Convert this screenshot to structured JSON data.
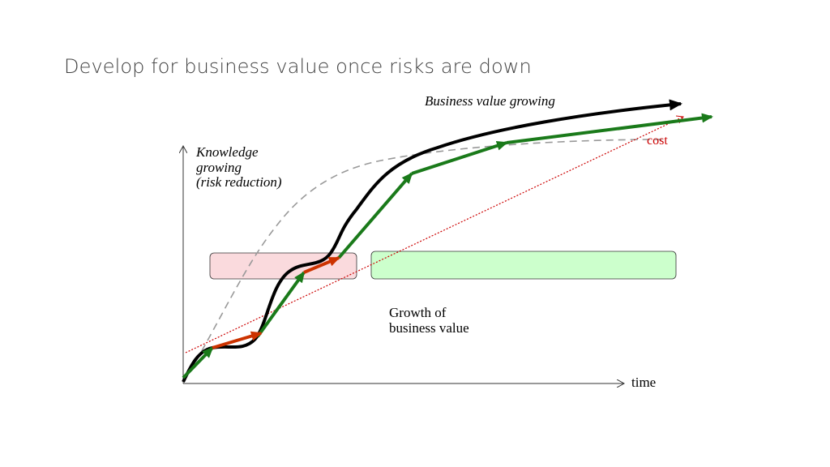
{
  "slide": {
    "title": "Develop for business value once risks are down"
  },
  "diagram": {
    "labels": {
      "business_value": "Business value growing",
      "knowledge_line1": "Knowledge",
      "knowledge_line2": "growing",
      "knowledge_line3": "(risk reduction)",
      "cost": "cost",
      "growth_line1": "Growth of",
      "growth_line2": "business value",
      "x_axis": "time"
    },
    "colors": {
      "business_value_curve": "#000000",
      "knowledge_curve": "#999999",
      "cost_line": "#cc0000",
      "risk_arrows": "#cc3300",
      "value_arrows": "#1a7a1a",
      "risk_box_fill": "#fadadd",
      "value_box_fill": "#ccffcc"
    }
  }
}
